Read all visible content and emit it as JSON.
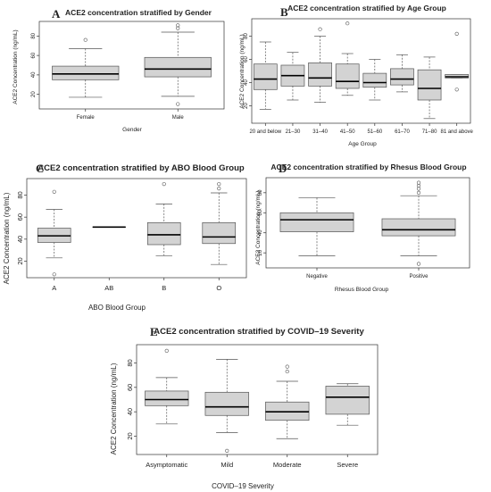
{
  "chart_data": [
    {
      "type": "box",
      "panel": "A",
      "title": "ACE2 concentration stratified by Gender",
      "xlabel": "Gender",
      "ylabel": "ACE2 Concentration (ng/mL)",
      "ylim": [
        5,
        95
      ],
      "yticks": [
        20,
        40,
        60,
        80
      ],
      "categories": [
        "Female",
        "Male"
      ],
      "boxes": [
        {
          "min": 17,
          "q1": 35,
          "median": 41,
          "q3": 49,
          "max": 67,
          "outliers": [
            76
          ]
        },
        {
          "min": 18,
          "q1": 38,
          "median": 46,
          "q3": 58,
          "max": 84,
          "outliers": [
            10,
            88,
            91
          ]
        }
      ]
    },
    {
      "type": "box",
      "panel": "B",
      "title": "ACE2 concentration stratified by Age Group",
      "xlabel": "Age Group",
      "ylabel": "ACE2 Concentration (ng/mL)",
      "ylim": [
        5,
        95
      ],
      "yticks": [
        20,
        40,
        60,
        80
      ],
      "categories": [
        "20 and below",
        "21–30",
        "31–40",
        "41–50",
        "51–60",
        "61–70",
        "71–80",
        "81 and above"
      ],
      "boxes": [
        {
          "min": 17,
          "q1": 34,
          "median": 43,
          "q3": 56,
          "max": 75,
          "outliers": []
        },
        {
          "min": 25,
          "q1": 37,
          "median": 46,
          "q3": 55,
          "max": 66,
          "outliers": []
        },
        {
          "min": 23,
          "q1": 37,
          "median": 44,
          "q3": 57,
          "max": 80,
          "outliers": [
            86
          ]
        },
        {
          "min": 29,
          "q1": 35,
          "median": 41,
          "q3": 56,
          "max": 65,
          "outliers": [
            91
          ]
        },
        {
          "min": 25,
          "q1": 36,
          "median": 40,
          "q3": 48,
          "max": 60,
          "outliers": []
        },
        {
          "min": 32,
          "q1": 38,
          "median": 43,
          "q3": 52,
          "max": 64,
          "outliers": []
        },
        {
          "min": 9,
          "q1": 25,
          "median": 35,
          "q3": 51,
          "max": 62,
          "outliers": []
        },
        {
          "min": 44,
          "q1": 44,
          "median": 45,
          "q3": 47,
          "max": 47,
          "outliers": [
            34,
            82
          ]
        }
      ]
    },
    {
      "type": "box",
      "panel": "C",
      "title": "ACE2 concentration stratified by ABO Blood Group",
      "xlabel": "ABO Blood Group",
      "ylabel": "ACE2 Concentration (ng/mL)",
      "ylim": [
        5,
        95
      ],
      "yticks": [
        20,
        40,
        60,
        80
      ],
      "categories": [
        "A",
        "AB",
        "B",
        "O"
      ],
      "boxes": [
        {
          "min": 23,
          "q1": 37,
          "median": 43,
          "q3": 50,
          "max": 67,
          "outliers": [
            8,
            83
          ]
        },
        {
          "min": 51,
          "q1": 51,
          "median": 51,
          "q3": 51,
          "max": 51,
          "outliers": []
        },
        {
          "min": 25,
          "q1": 35,
          "median": 44,
          "q3": 55,
          "max": 72,
          "outliers": [
            90
          ]
        },
        {
          "min": 17,
          "q1": 36,
          "median": 42,
          "q3": 55,
          "max": 82,
          "outliers": [
            86,
            90
          ]
        }
      ]
    },
    {
      "type": "box",
      "panel": "D",
      "title": "ACE2 concentration stratified by Rhesus Blood Group",
      "xlabel": "Rhesus Blood Group",
      "ylabel": "ACE2 Concentration (ng/mL)",
      "ylim": [
        5,
        95
      ],
      "yticks": [
        20,
        40,
        60,
        80
      ],
      "categories": [
        "Negative",
        "Positive"
      ],
      "boxes": [
        {
          "min": 17,
          "q1": 41,
          "median": 53,
          "q3": 60,
          "max": 75,
          "outliers": []
        },
        {
          "min": 17,
          "q1": 37,
          "median": 43,
          "q3": 54,
          "max": 77,
          "outliers": [
            9,
            80,
            84,
            87,
            90
          ]
        }
      ]
    },
    {
      "type": "box",
      "panel": "E",
      "title": "ACE2 concentration stratified by COVID–19 Severity",
      "xlabel": "COVID–19 Severity",
      "ylabel": "ACE2 Concentration (ng/mL)",
      "ylim": [
        5,
        95
      ],
      "yticks": [
        20,
        40,
        60,
        80
      ],
      "categories": [
        "Asymptomatic",
        "Mild",
        "Moderate",
        "Severe"
      ],
      "boxes": [
        {
          "min": 30,
          "q1": 45,
          "median": 50,
          "q3": 57,
          "max": 68,
          "outliers": [
            90
          ]
        },
        {
          "min": 23,
          "q1": 37,
          "median": 44,
          "q3": 56,
          "max": 83,
          "outliers": [
            8
          ]
        },
        {
          "min": 18,
          "q1": 33,
          "median": 40,
          "q3": 48,
          "max": 65,
          "outliers": [
            73,
            77
          ]
        },
        {
          "min": 29,
          "q1": 38,
          "median": 52,
          "q3": 61,
          "max": 63,
          "outliers": []
        }
      ]
    }
  ]
}
